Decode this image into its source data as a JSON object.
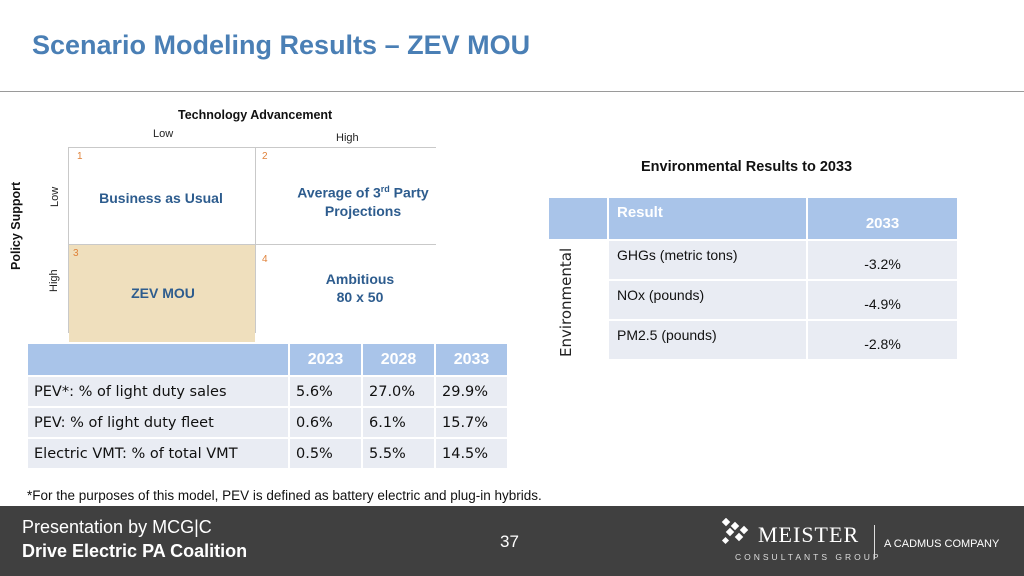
{
  "title": "Scenario Modeling Results – ZEV MOU",
  "matrix": {
    "x_axis_title": "Technology Advancement",
    "x_low": "Low",
    "x_high": "High",
    "y_axis_title": "Policy Support",
    "y_low": "Low",
    "y_high": "High",
    "quadrants": [
      {
        "number": "1",
        "label": "Business as Usual"
      },
      {
        "number": "2",
        "label_main": "Average of 3",
        "label_sup": "rd",
        "label_rest": " Party",
        "label_line2": "Projections"
      },
      {
        "number": "3",
        "label": "ZEV MOU"
      },
      {
        "number": "4",
        "label_line1": "Ambitious",
        "label_line2": "80 x 50"
      }
    ],
    "highlight_color": "#efdfbd"
  },
  "pev_table": {
    "headers": [
      "",
      "2023",
      "2028",
      "2033"
    ],
    "rows": [
      [
        "PEV*:   % of light duty sales",
        "5.6%",
        "27.0%",
        "29.9%"
      ],
      [
        "PEV:     % of light duty fleet",
        "0.6%",
        "6.1%",
        "15.7%"
      ],
      [
        "Electric VMT: % of total VMT",
        "0.5%",
        "5.5%",
        "14.5%"
      ]
    ]
  },
  "env_results": {
    "heading": "Environmental Results to 2033",
    "row_group": "Environmental",
    "headers": [
      "Result",
      "2033"
    ],
    "rows": [
      [
        "GHGs (metric tons)",
        "-3.2%"
      ],
      [
        "NOx (pounds)",
        "-4.9%"
      ],
      [
        "PM2.5 (pounds)",
        "-2.8%"
      ]
    ]
  },
  "footnote": "*For the purposes of this model, PEV is defined as battery electric and plug-in hybrids.",
  "footer": {
    "presentation": "Presentation by MCG|C",
    "client": "Drive Electric PA Coalition",
    "page": "37",
    "logo_name": "MEISTER",
    "logo_sub": "CONSULTANTS GROUP",
    "logo_tag": "A CADMUS COMPANY"
  },
  "colors": {
    "title": "#4a7fb5",
    "header_fill": "#a9c4e9",
    "cell_fill": "#e9ecf3",
    "quadrant_text": "#2d5c8e",
    "quadrant_number": "#e0823a",
    "footer_bg": "#404040"
  }
}
